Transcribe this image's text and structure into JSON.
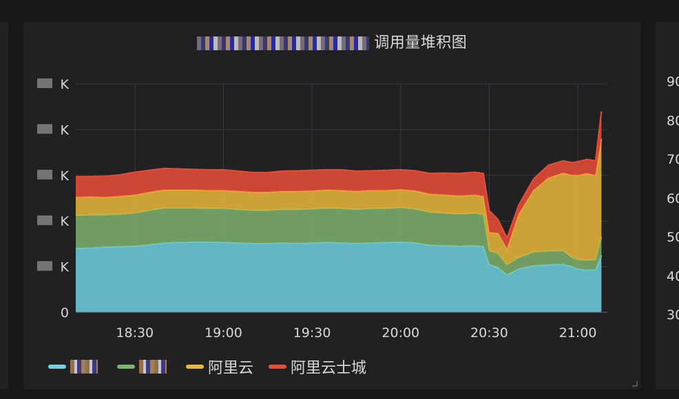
{
  "panel": {
    "title": "调用量堆积图"
  },
  "colors": {
    "series1": "#6ed0e0",
    "series2": "#7eb26d",
    "series3": "#eab839",
    "series4": "#ea4c36",
    "grid": "#3a3a3f",
    "text": "#d8d9da"
  },
  "chart_data": {
    "type": "area",
    "stacked": true,
    "title": "调用量堆积图",
    "x_ticks": [
      "18:30",
      "19:00",
      "19:30",
      "20:00",
      "20:30",
      "21:00"
    ],
    "x_range": [
      "18:10",
      "21:10"
    ],
    "y_ticks": [
      "0",
      "K",
      "K",
      "K",
      "K",
      "K"
    ],
    "ylim": [
      0,
      5
    ],
    "grid": true,
    "legend_position": "bottom-left",
    "x": [
      "18:10",
      "18:15",
      "18:20",
      "18:25",
      "18:30",
      "18:35",
      "18:40",
      "18:45",
      "18:50",
      "18:55",
      "19:00",
      "19:05",
      "19:10",
      "19:15",
      "19:20",
      "19:25",
      "19:30",
      "19:35",
      "19:40",
      "19:45",
      "19:50",
      "19:55",
      "20:00",
      "20:05",
      "20:10",
      "20:15",
      "20:20",
      "20:25",
      "20:28",
      "20:30",
      "20:33",
      "20:36",
      "20:40",
      "20:45",
      "20:50",
      "20:55",
      "20:58",
      "21:00",
      "21:03",
      "21:06",
      "21:08"
    ],
    "series": [
      {
        "name": "",
        "values": [
          1.4,
          1.41,
          1.43,
          1.44,
          1.45,
          1.48,
          1.52,
          1.53,
          1.54,
          1.54,
          1.53,
          1.52,
          1.51,
          1.51,
          1.52,
          1.51,
          1.52,
          1.53,
          1.52,
          1.51,
          1.52,
          1.53,
          1.54,
          1.52,
          1.47,
          1.46,
          1.45,
          1.46,
          1.44,
          1.05,
          0.98,
          0.82,
          0.95,
          1.02,
          1.04,
          1.05,
          1.0,
          0.95,
          0.92,
          0.93,
          1.25
        ]
      },
      {
        "name": "",
        "values": [
          0.72,
          0.72,
          0.7,
          0.71,
          0.72,
          0.75,
          0.76,
          0.75,
          0.74,
          0.73,
          0.74,
          0.73,
          0.72,
          0.72,
          0.73,
          0.74,
          0.74,
          0.75,
          0.75,
          0.74,
          0.75,
          0.74,
          0.75,
          0.74,
          0.72,
          0.71,
          0.7,
          0.71,
          0.7,
          0.3,
          0.3,
          0.22,
          0.25,
          0.3,
          0.3,
          0.3,
          0.2,
          0.2,
          0.22,
          0.22,
          0.4
        ]
      },
      {
        "name": "阿里云",
        "values": [
          0.4,
          0.4,
          0.39,
          0.39,
          0.4,
          0.4,
          0.4,
          0.4,
          0.4,
          0.4,
          0.4,
          0.4,
          0.4,
          0.4,
          0.4,
          0.4,
          0.4,
          0.4,
          0.4,
          0.4,
          0.4,
          0.4,
          0.4,
          0.4,
          0.4,
          0.4,
          0.4,
          0.4,
          0.4,
          0.4,
          0.45,
          0.35,
          0.95,
          1.35,
          1.6,
          1.7,
          1.8,
          1.85,
          1.9,
          1.85,
          2.15
        ]
      },
      {
        "name": "阿里云士城",
        "values": [
          0.45,
          0.44,
          0.46,
          0.47,
          0.5,
          0.48,
          0.47,
          0.46,
          0.45,
          0.45,
          0.45,
          0.44,
          0.43,
          0.43,
          0.44,
          0.45,
          0.45,
          0.44,
          0.45,
          0.44,
          0.43,
          0.44,
          0.43,
          0.44,
          0.45,
          0.48,
          0.49,
          0.5,
          0.5,
          0.48,
          0.3,
          0.24,
          0.2,
          0.25,
          0.28,
          0.27,
          0.28,
          0.3,
          0.31,
          0.32,
          0.6
        ]
      }
    ]
  },
  "legend": {
    "series1_label": "",
    "series2_label": "",
    "series3_label": "阿里云",
    "series4_label": "阿里云士城"
  },
  "right_panel": {
    "ticks": [
      "90",
      "80",
      "70",
      "60",
      "50",
      "40",
      "30"
    ]
  }
}
